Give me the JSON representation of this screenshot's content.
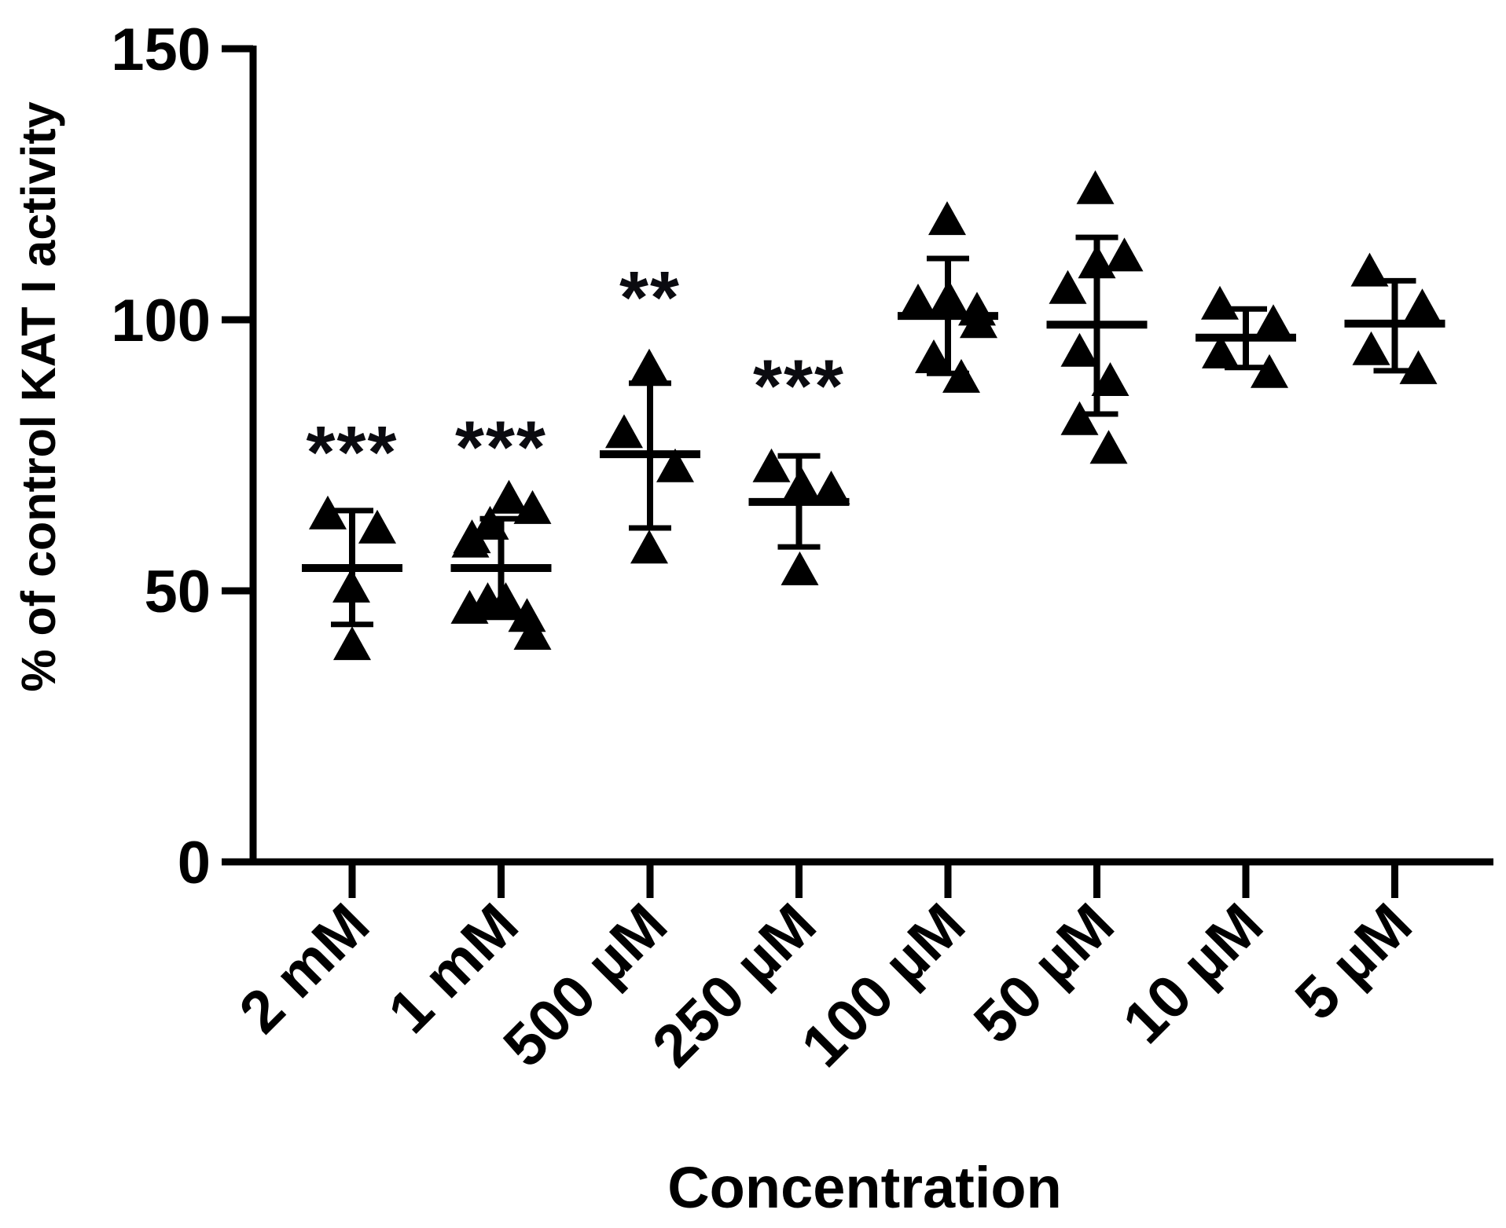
{
  "chart_data": {
    "type": "scatter",
    "title": "",
    "xlabel": "Concentration",
    "ylabel": "% of control KAT I activity",
    "ylim": [
      0,
      150
    ],
    "yticks": [
      0,
      50,
      100,
      150
    ],
    "grid": false,
    "legend": "none",
    "marker": "filled-up-triangle",
    "error_bars": "mean plus/minus SD with caps",
    "colors": {
      "marker": "#000000",
      "axis": "#000000",
      "significance": "#0b0b10",
      "background": "#ffffff"
    },
    "groups": [
      {
        "label": "2 mM",
        "significance": "***",
        "sig_y": 77.8,
        "mean": 54.2,
        "sd_hi": 64.8,
        "sd_lo": 43.8,
        "points": [
          63.8,
          61.2,
          50.3,
          39.7
        ],
        "jitter": [
          -31,
          32,
          -1,
          0
        ]
      },
      {
        "label": "1 mM",
        "significance": "***",
        "sig_y": 78.8,
        "mean": 54.2,
        "sd_hi": 63.3,
        "sd_lo": 45.1,
        "points": [
          66.7,
          64.8,
          61.9,
          59.4,
          58.6,
          47.8,
          47.8,
          46.4,
          44.9,
          41.6
        ],
        "jitter": [
          10,
          40,
          -14,
          -37,
          -39,
          -17,
          6,
          -40,
          33,
          40
        ]
      },
      {
        "label": "500 µM",
        "significance": "**",
        "sig_y": 106.4,
        "mean": 75.2,
        "sd_hi": 88.3,
        "sd_lo": 61.6,
        "points": [
          90.9,
          78.8,
          72.5,
          57.5
        ],
        "jitter": [
          -1,
          -33,
          32,
          -1
        ]
      },
      {
        "label": "250 µM",
        "significance": "***",
        "sig_y": 90.1,
        "mean": 66.4,
        "sd_hi": 74.9,
        "sd_lo": 58.1,
        "points": [
          72.5,
          69.1,
          68.4,
          53.5
        ],
        "jitter": [
          -35,
          3,
          41,
          1
        ]
      },
      {
        "label": "100 µM",
        "significance": "",
        "sig_y": null,
        "mean": 100.7,
        "sd_hi": 111.3,
        "sd_lo": 90.1,
        "points": [
          118.1,
          103.6,
          102.9,
          101.4,
          99.1,
          92.6,
          89.0
        ],
        "jitter": [
          -1,
          1,
          -38,
          37,
          39,
          -18,
          17
        ]
      },
      {
        "label": "50 µM",
        "significance": "",
        "sig_y": null,
        "mean": 99.1,
        "sd_hi": 115.2,
        "sd_lo": 82.6,
        "points": [
          123.8,
          111.4,
          110.1,
          105.4,
          93.8,
          88.4,
          81.2,
          75.9
        ],
        "jitter": [
          -2,
          35,
          0,
          -37,
          -22,
          17,
          -22,
          15
        ]
      },
      {
        "label": "10 µM",
        "significance": "",
        "sig_y": null,
        "mean": 96.7,
        "sd_hi": 102.0,
        "sd_lo": 91.2,
        "points": [
          102.5,
          99.1,
          93.5,
          89.9
        ],
        "jitter": [
          -33,
          35,
          -32,
          30
        ]
      },
      {
        "label": "5 µM",
        "significance": "",
        "sig_y": null,
        "mean": 99.3,
        "sd_hi": 107.2,
        "sd_lo": 90.6,
        "points": [
          108.6,
          102.0,
          94.1,
          90.6
        ],
        "jitter": [
          -32,
          35,
          -30,
          30
        ]
      }
    ]
  }
}
